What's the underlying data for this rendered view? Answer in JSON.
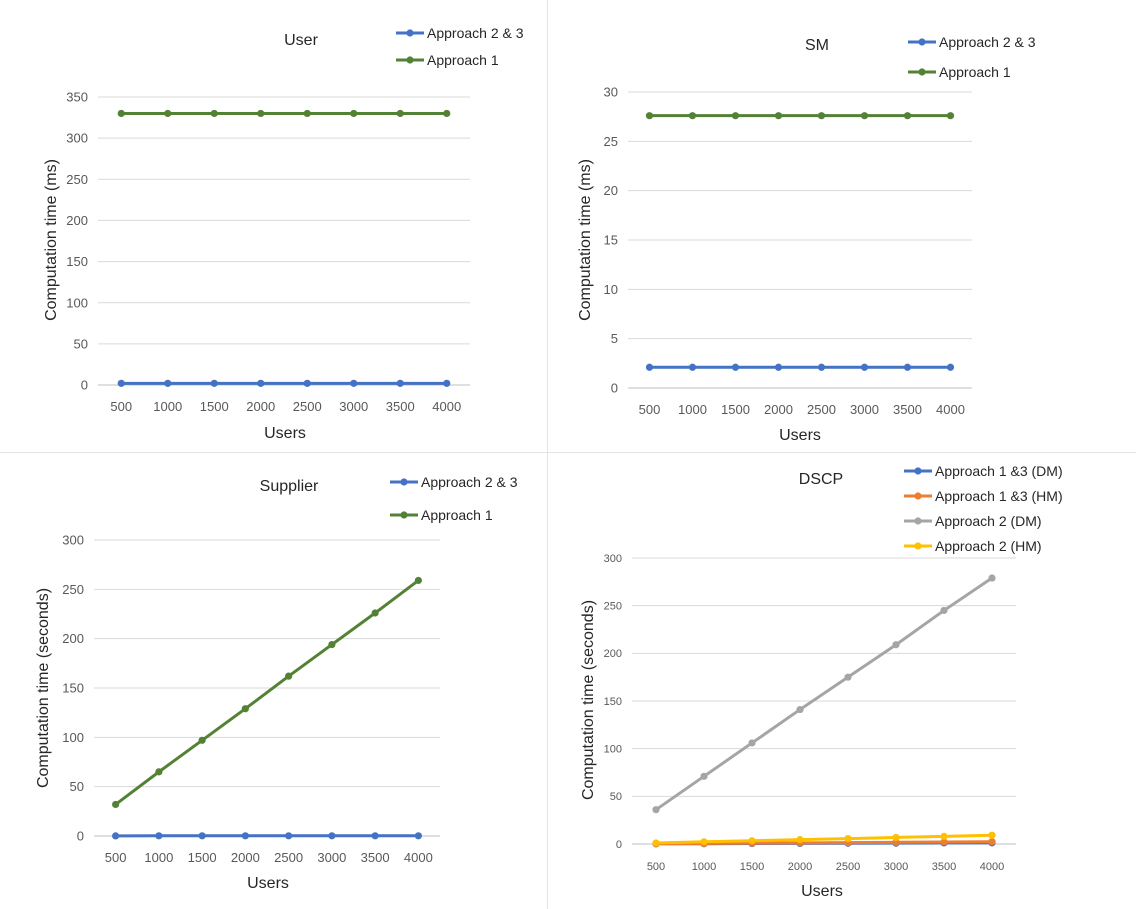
{
  "chart_data": [
    {
      "type": "line",
      "title": "User",
      "xlabel": "Users",
      "ylabel": "Computation time (ms)",
      "categories": [
        "500",
        "1000",
        "1500",
        "2000",
        "2500",
        "3000",
        "3500",
        "4000"
      ],
      "ylim": [
        0,
        350
      ],
      "yticks": [
        "0",
        "50",
        "100",
        "150",
        "200",
        "250",
        "300",
        "350"
      ],
      "grid": true,
      "legend_position": "top-right",
      "series": [
        {
          "name": "Approach 2 & 3",
          "color": "#4472c4",
          "values": [
            2,
            2,
            2,
            2,
            2,
            2,
            2,
            2
          ]
        },
        {
          "name": "Approach 1",
          "color": "#548235",
          "values": [
            330,
            330,
            330,
            330,
            330,
            330,
            330,
            330
          ]
        }
      ]
    },
    {
      "type": "line",
      "title": "SM",
      "xlabel": "Users",
      "ylabel": "Computation time (ms)",
      "categories": [
        "500",
        "1000",
        "1500",
        "2000",
        "2500",
        "3000",
        "3500",
        "4000"
      ],
      "ylim": [
        0,
        30
      ],
      "yticks": [
        "0",
        "5",
        "10",
        "15",
        "20",
        "25",
        "30"
      ],
      "grid": true,
      "legend_position": "top-right",
      "series": [
        {
          "name": "Approach 2 & 3",
          "color": "#4472c4",
          "values": [
            2.1,
            2.1,
            2.1,
            2.1,
            2.1,
            2.1,
            2.1,
            2.1
          ]
        },
        {
          "name": "Approach 1",
          "color": "#548235",
          "values": [
            27.6,
            27.6,
            27.6,
            27.6,
            27.6,
            27.6,
            27.6,
            27.6
          ]
        }
      ]
    },
    {
      "type": "line",
      "title": "Supplier",
      "xlabel": "Users",
      "ylabel": "Computation time (seconds)",
      "categories": [
        "500",
        "1000",
        "1500",
        "2000",
        "2500",
        "3000",
        "3500",
        "4000"
      ],
      "ylim": [
        0,
        300
      ],
      "yticks": [
        "0",
        "50",
        "100",
        "150",
        "200",
        "250",
        "300"
      ],
      "grid": true,
      "legend_position": "top-right",
      "series": [
        {
          "name": "Approach 2 & 3",
          "color": "#4472c4",
          "values": [
            0.1,
            0.2,
            0.2,
            0.2,
            0.2,
            0.2,
            0.2,
            0.2
          ]
        },
        {
          "name": "Approach 1",
          "color": "#548235",
          "values": [
            32,
            65,
            97,
            129,
            162,
            194,
            226,
            259
          ]
        }
      ]
    },
    {
      "type": "line",
      "title": "DSCP",
      "xlabel": "Users",
      "ylabel": "Computation time (seconds)",
      "categories": [
        "500",
        "1000",
        "1500",
        "2000",
        "2500",
        "3000",
        "3500",
        "4000"
      ],
      "ylim": [
        0,
        300
      ],
      "yticks": [
        "0",
        "50",
        "100",
        "150",
        "200",
        "250",
        "300"
      ],
      "grid": true,
      "legend_position": "top-right",
      "series": [
        {
          "name": "Approach 1 &3 (DM)",
          "color": "#4472c4",
          "values": [
            0.2,
            0.3,
            0.5,
            0.6,
            0.8,
            0.9,
            1.1,
            1.2
          ]
        },
        {
          "name": "Approach 1 &3  (HM)",
          "color": "#ed7d31",
          "values": [
            0.3,
            0.6,
            0.9,
            1.2,
            1.5,
            1.8,
            2.1,
            2.4
          ]
        },
        {
          "name": "Approach 2  (DM)",
          "color": "#a5a5a5",
          "values": [
            36,
            71,
            106,
            141,
            175,
            209,
            245,
            279
          ]
        },
        {
          "name": "Approach 2 (HM)",
          "color": "#ffc000",
          "values": [
            1.1,
            2.3,
            3.4,
            4.6,
            5.7,
            6.9,
            8.0,
            9.2
          ]
        }
      ]
    }
  ]
}
